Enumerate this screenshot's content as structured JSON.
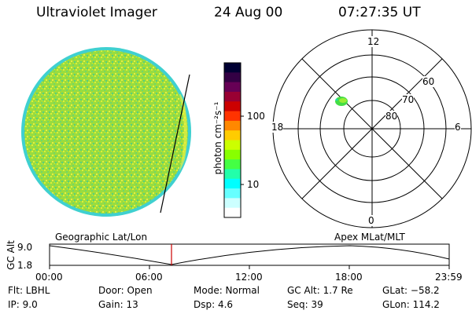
{
  "header": {
    "instrument": "Ultraviolet Imager",
    "date": "24 Aug 00",
    "time": "07:27:35 UT"
  },
  "colorbar": {
    "unit_label": "photon cm⁻²s⁻¹",
    "ticks": [
      "100",
      "10"
    ],
    "colors": [
      "#000033",
      "#330044",
      "#660055",
      "#990033",
      "#cc0000",
      "#ff3300",
      "#ff8800",
      "#ffcc00",
      "#ccff00",
      "#88ff00",
      "#44ff44",
      "#22ffaa",
      "#00ffff",
      "#66ffff",
      "#ccffff",
      "#ffffff"
    ]
  },
  "polar": {
    "mlt_labels": {
      "top": "12",
      "left": "18",
      "right": "6",
      "bottom": "0"
    },
    "lat_labels": [
      "60",
      "70",
      "80"
    ]
  },
  "timeline": {
    "left_title": "Geographic Lat/Lon",
    "right_title": "Apex MLat/MLT",
    "y_axis_label": "GC Alt",
    "y_ticks": [
      "9.0",
      "1.8"
    ],
    "x_ticks": [
      "00:00",
      "06:00",
      "12:00",
      "18:00",
      "23:59"
    ]
  },
  "info": {
    "flt": "Flt: LBHL",
    "ip": "IP:  9.0",
    "door": "Door: Open",
    "gain": "Gain: 13",
    "mode": "Mode: Normal",
    "dsp": "Dsp:     4.6",
    "gcalt": "GC Alt: 1.7 Re",
    "seq": "Seq: 39",
    "glat": "GLat:  −58.2",
    "glon": "GLon: 114.2"
  }
}
